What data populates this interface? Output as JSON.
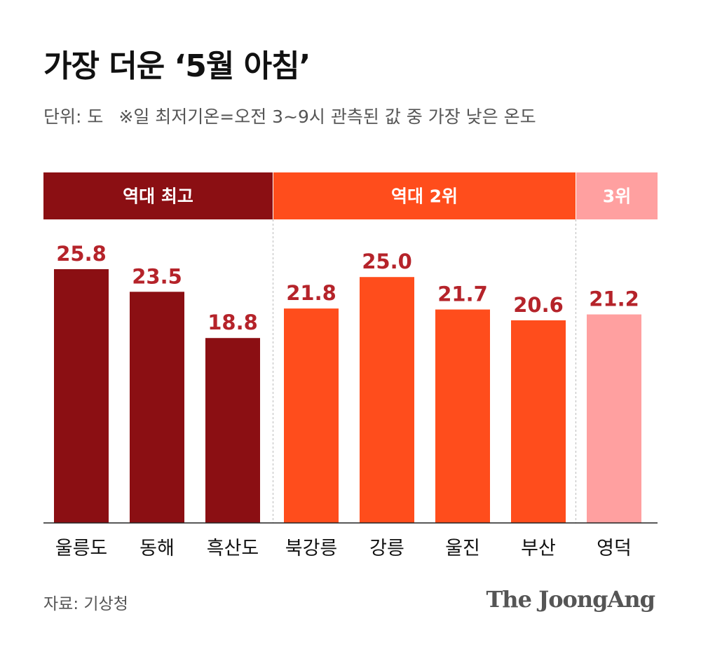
{
  "header": {
    "title": "가장 더운 ‘5월 아침’",
    "unit": "단위: 도",
    "note": "※일 최저기온=오전 3~9시 관측된 값 중 가장 낮은 온도"
  },
  "chart_data": {
    "type": "bar",
    "categories": [
      "울릉도",
      "동해",
      "흑산도",
      "북강릉",
      "강릉",
      "울진",
      "부산",
      "영덕"
    ],
    "values": [
      25.8,
      23.5,
      18.8,
      21.8,
      25.0,
      21.7,
      20.6,
      21.2
    ],
    "value_labels": [
      "25.8",
      "23.5",
      "18.8",
      "21.8",
      "25.0",
      "21.7",
      "20.6",
      "21.2"
    ],
    "ylim": [
      0,
      25.8
    ],
    "groups": [
      {
        "label": "역대 최고",
        "start": 0,
        "end": 2,
        "color": "#8b0f13"
      },
      {
        "label": "역대 2위",
        "start": 3,
        "end": 6,
        "color": "#ff4d1c"
      },
      {
        "label": "3위",
        "start": 7,
        "end": 7,
        "color": "#ffa0a0"
      }
    ],
    "value_label_color": "#b5232a",
    "grid": false
  },
  "footer": {
    "source": "자료: 기상청",
    "brand": "The JoongAng"
  }
}
